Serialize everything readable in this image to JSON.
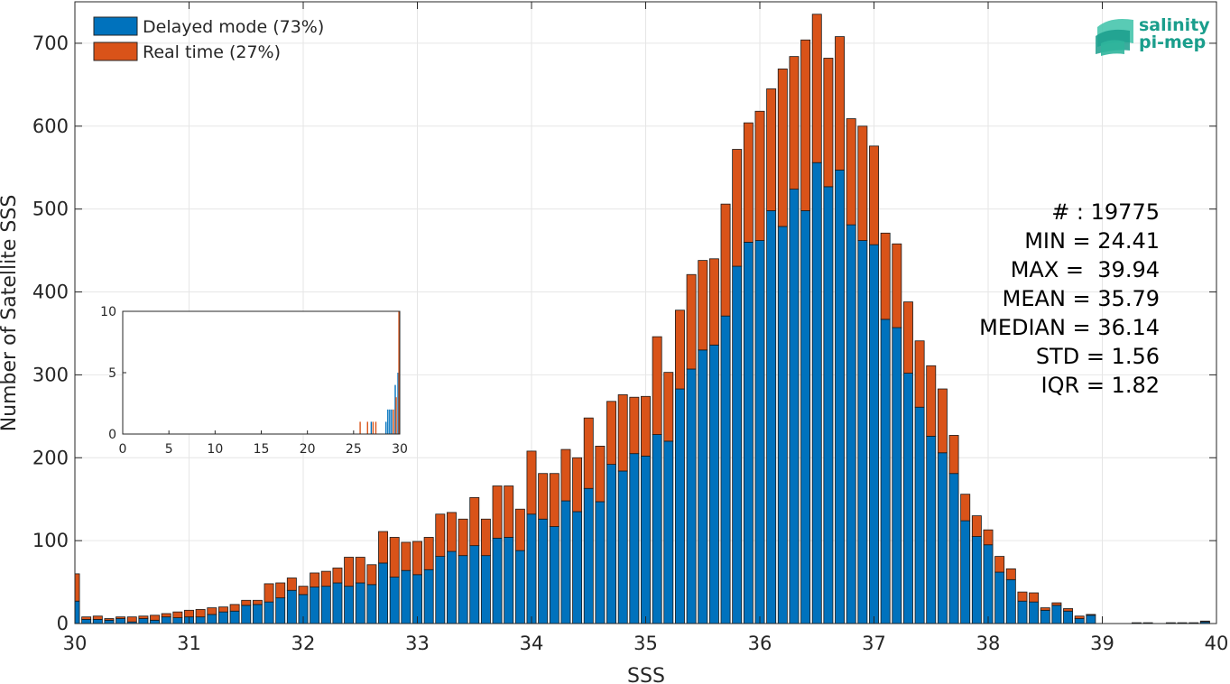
{
  "chart_data": [
    {
      "type": "bar",
      "stacked": true,
      "xlabel": "SSS",
      "ylabel": "Number of Satellite SSS",
      "xlim": [
        30,
        40
      ],
      "ylim": [
        0,
        750
      ],
      "xticks": [
        30,
        31,
        32,
        33,
        34,
        35,
        36,
        37,
        38,
        39,
        40
      ],
      "yticks": [
        0,
        100,
        200,
        300,
        400,
        500,
        600,
        700
      ],
      "grid": true,
      "legend_position": "top-left",
      "bin_start": 30.0,
      "bin_width": 0.1,
      "series": [
        {
          "name": "Delayed mode (73%)",
          "color": "#0072BD",
          "values": [
            27,
            5,
            5,
            4,
            6,
            2,
            6,
            4,
            8,
            7,
            8,
            8,
            11,
            14,
            15,
            22,
            23,
            26,
            31,
            40,
            35,
            44,
            45,
            49,
            45,
            49,
            47,
            73,
            56,
            64,
            59,
            65,
            81,
            87,
            82,
            94,
            82,
            103,
            104,
            88,
            132,
            126,
            117,
            148,
            135,
            163,
            147,
            192,
            184,
            205,
            202,
            228,
            220,
            283,
            307,
            330,
            336,
            371,
            431,
            460,
            462,
            498,
            479,
            524,
            498,
            556,
            527,
            547,
            481,
            462,
            457,
            367,
            357,
            302,
            261,
            226,
            206,
            181,
            124,
            105,
            95,
            62,
            53,
            27,
            26,
            16,
            22,
            15,
            6,
            10,
            0,
            0,
            0,
            1,
            1,
            0,
            1,
            1,
            1,
            2
          ]
        },
        {
          "name": "Real time (27%)",
          "color": "#D95319",
          "values": [
            33,
            3,
            4,
            2,
            2,
            6,
            3,
            6,
            4,
            7,
            8,
            9,
            8,
            6,
            8,
            6,
            5,
            22,
            18,
            15,
            10,
            17,
            18,
            18,
            35,
            31,
            24,
            38,
            48,
            34,
            40,
            39,
            51,
            47,
            44,
            58,
            44,
            63,
            62,
            50,
            76,
            55,
            64,
            62,
            65,
            85,
            67,
            76,
            92,
            68,
            72,
            118,
            83,
            95,
            114,
            108,
            104,
            135,
            141,
            144,
            156,
            147,
            190,
            160,
            206,
            179,
            155,
            161,
            128,
            138,
            119,
            104,
            101,
            86,
            80,
            85,
            77,
            46,
            32,
            25,
            18,
            19,
            13,
            11,
            11,
            3,
            3,
            3,
            3,
            1,
            0,
            0,
            0,
            0,
            0,
            0,
            0,
            0,
            0,
            1
          ]
        }
      ],
      "stats": {
        "count_line": "# : 19775",
        "min_line": "MIN = 24.41",
        "max_line": "MAX =  39.94",
        "mean_line": "MEAN = 35.79",
        "median_line": "MEDIAN = 36.14",
        "std_line": "STD = 1.56",
        "iqr_line": "IQR = 1.82"
      },
      "logo": {
        "line1": "salinity",
        "line2": "pi-mep",
        "color": "#1a9e8c"
      }
    },
    {
      "type": "bar",
      "inset": true,
      "xlim": [
        0,
        30
      ],
      "ylim": [
        0,
        10
      ],
      "xticks": [
        0,
        5,
        10,
        15,
        20,
        25,
        30
      ],
      "yticks": [
        0,
        5,
        10
      ],
      "grid": false,
      "bars": [
        {
          "x": 25.7,
          "value": 1,
          "series": "Real time (27%)"
        },
        {
          "x": 26.5,
          "value": 1,
          "series": "Real time (27%)"
        },
        {
          "x": 26.9,
          "value": 1,
          "series": "Delayed mode (73%)"
        },
        {
          "x": 27.1,
          "value": 1,
          "series": "Real time (27%)"
        },
        {
          "x": 27.4,
          "value": 1,
          "series": "Real time (27%)"
        },
        {
          "x": 28.5,
          "value": 1,
          "series": "Delayed mode (73%)"
        },
        {
          "x": 28.7,
          "value": 2,
          "series": "Delayed mode (73%)"
        },
        {
          "x": 28.9,
          "value": 2,
          "series": "Delayed mode (73%)"
        },
        {
          "x": 29.1,
          "value": 2,
          "series": "Delayed mode (73%)"
        },
        {
          "x": 29.3,
          "value": 2,
          "series": "Real time (27%)"
        },
        {
          "x": 29.5,
          "value": 4,
          "series": "Delayed mode (73%)"
        },
        {
          "x": 29.6,
          "value": 3,
          "series": "Real time (27%)"
        },
        {
          "x": 29.8,
          "value": 5,
          "series": "Delayed mode (73%)"
        },
        {
          "x": 29.9,
          "value": 10,
          "series": "Real time (27%)"
        }
      ]
    }
  ]
}
